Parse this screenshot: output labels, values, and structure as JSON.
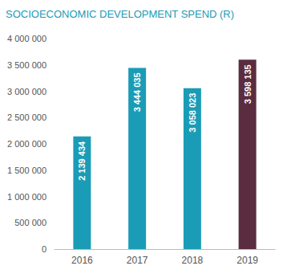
{
  "chart_data": {
    "type": "bar",
    "title": "SOCIOECONOMIC DEVELOPMENT SPEND (R)",
    "categories": [
      "2016",
      "2017",
      "2018",
      "2019"
    ],
    "values": [
      2139434,
      3444035,
      3058023,
      3598135
    ],
    "value_labels": [
      "2 139 434",
      "3 444 035",
      "3 058 023",
      "3 598 135"
    ],
    "colors": [
      "#1b9cb6",
      "#1b9cb6",
      "#1b9cb6",
      "#5b2c3f"
    ],
    "ylim": [
      0,
      4000000
    ],
    "yticks": [
      0,
      {
        "value": 500000,
        "label": "500 000"
      },
      {
        "value": 1000000,
        "label": "1 000 000"
      },
      {
        "value": 1500000,
        "label": "1 500 000"
      },
      {
        "value": 2000000,
        "label": "2 000 000"
      },
      {
        "value": 2500000,
        "label": "2 500 000"
      },
      {
        "value": 3000000,
        "label": "3 000 000"
      },
      {
        "value": 3500000,
        "label": "3 500 000"
      },
      {
        "value": 4000000,
        "label": "4 000 000"
      }
    ],
    "grid": false,
    "data_labels": true
  }
}
